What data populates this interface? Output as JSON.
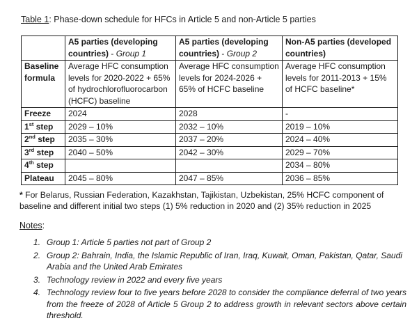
{
  "title": {
    "label": "Table 1",
    "colon": ":",
    "text": "Phase-down schedule for HFCs in Article 5 and non-Article 5 parties"
  },
  "table": {
    "header": {
      "columns": [
        {
          "main": "A5 parties (developing countries)",
          "sep": " - ",
          "group": "Group 1"
        },
        {
          "main": "A5 parties (developing countries)",
          "sep": " - ",
          "group": "Group 2"
        },
        {
          "main": "Non-A5 parties (developed countries)",
          "sep": "",
          "group": ""
        }
      ]
    },
    "rows": [
      {
        "label": {
          "text": "Baseline formula"
        },
        "cells": [
          "Average HFC consumption levels for 2020-2022 + 65% of hydrochlorofluorocarbon (HCFC) baseline",
          "Average HFC consumption levels for 2024-2026 + 65% of HCFC baseline",
          "Average HFC consumption levels for 2011-2013 + 15% of HCFC baseline*"
        ]
      },
      {
        "label": {
          "text": "Freeze"
        },
        "cells": [
          "2024",
          "2028",
          "-"
        ]
      },
      {
        "label": {
          "num": "1",
          "sup": "st",
          "rest": " step"
        },
        "cells": [
          "2029 – 10%",
          "2032 – 10%",
          "2019 – 10%"
        ]
      },
      {
        "label": {
          "num": "2",
          "sup": "nd",
          "rest": " step"
        },
        "cells": [
          "2035 – 30%",
          "2037 – 20%",
          "2024 – 40%"
        ]
      },
      {
        "label": {
          "num": "3",
          "sup": "rd",
          "rest": " step"
        },
        "cells": [
          "2040 – 50%",
          "2042 – 30%",
          "2029 – 70%"
        ]
      },
      {
        "label": {
          "num": "4",
          "sup": "th",
          "rest": " step"
        },
        "cells": [
          "",
          "",
          "2034 – 80%"
        ]
      },
      {
        "label": {
          "text": "Plateau"
        },
        "cells": [
          "2045 – 80%",
          "2047 – 85%",
          "2036 – 85%"
        ]
      }
    ]
  },
  "footnote": {
    "star": "*",
    "text": " For Belarus, Russian Federation, Kazakhstan, Tajikistan, Uzbekistan, 25% HCFC component of baseline and different initial two steps (1) 5% reduction in 2020 and (2) 35% reduction in 2025"
  },
  "notes": {
    "heading": "Notes",
    "colon": ":",
    "items": [
      "Group 1: Article 5 parties not part of Group 2",
      "Group 2: Bahrain, India, the Islamic Republic of Iran, Iraq, Kuwait, Oman, Pakistan, Qatar, Saudi Arabia and the United Arab Emirates",
      "Technology review in 2022 and every five years",
      "Technology review four to five years before 2028 to consider the compliance deferral of two years from the freeze of 2028 of Article 5 Group 2 to address growth in relevant sectors above certain threshold."
    ]
  }
}
